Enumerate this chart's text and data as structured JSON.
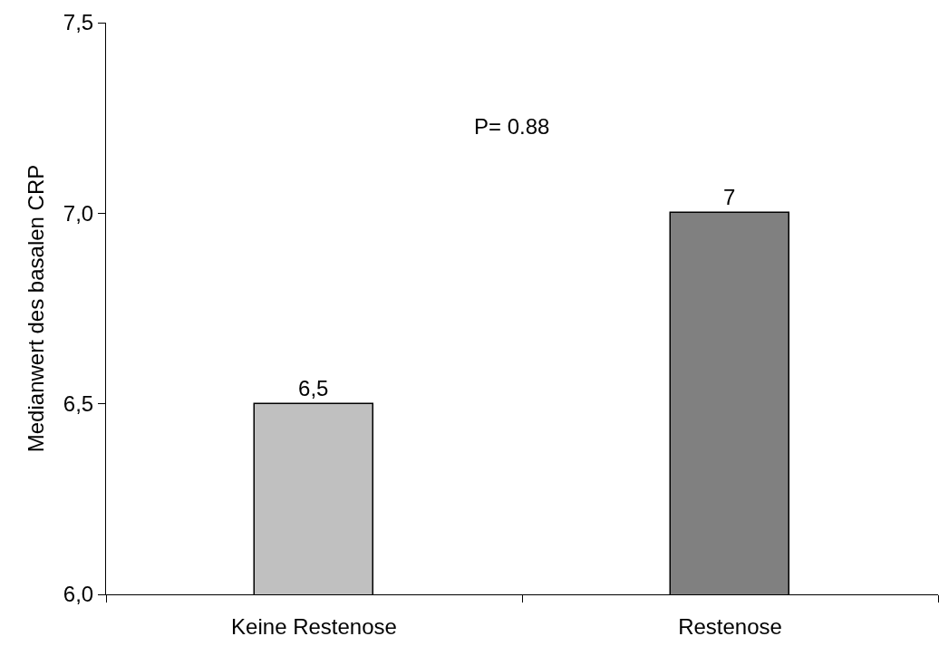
{
  "chart_data": {
    "type": "bar",
    "ylabel": "Medianwert des basalen CRP",
    "categories": [
      "Keine Restenose",
      "Restenose"
    ],
    "values": [
      6.5,
      7
    ],
    "colors": [
      "#c0c0c0",
      "#808080"
    ],
    "value_labels": [
      "6,5",
      "7"
    ],
    "ylim": [
      6,
      7.5
    ],
    "yticks": [
      {
        "value": 6,
        "label": "6,0"
      },
      {
        "value": 6.5,
        "label": "6,5"
      },
      {
        "value": 7,
        "label": "7,0"
      },
      {
        "value": 7.5,
        "label": "7,5"
      }
    ],
    "annotations": [
      "P= 0.88"
    ],
    "grid": false
  }
}
